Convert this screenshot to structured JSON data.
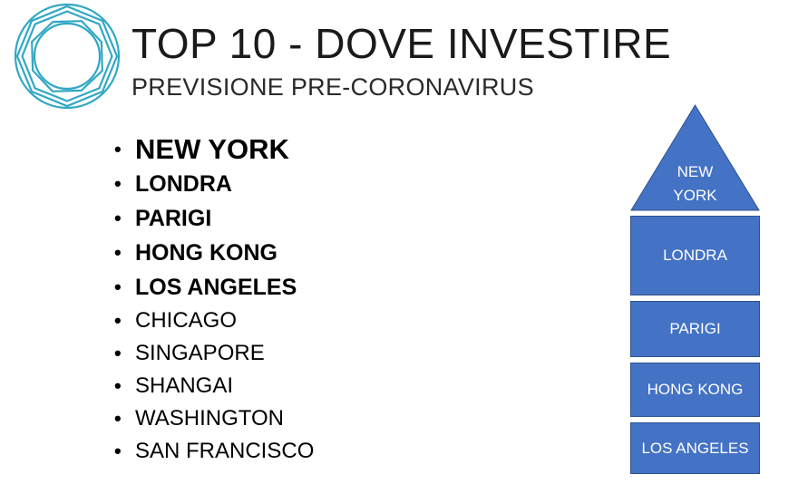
{
  "logo": {
    "icon": "geometric-circle-logo",
    "color": "#31a8c4"
  },
  "header": {
    "title": "TOP 10 - DOVE INVESTIRE",
    "subtitle": "PREVISIONE PRE-CORONAVIRUS"
  },
  "cities": [
    {
      "name": "NEW YORK",
      "style": "big"
    },
    {
      "name": "LONDRA",
      "style": "bold"
    },
    {
      "name": "PARIGI",
      "style": "bold"
    },
    {
      "name": "HONG KONG",
      "style": "bold"
    },
    {
      "name": "LOS ANGELES",
      "style": "bold"
    },
    {
      "name": "CHICAGO",
      "style": "normal"
    },
    {
      "name": "SINGAPORE",
      "style": "normal"
    },
    {
      "name": "SHANGAI",
      "style": "normal"
    },
    {
      "name": "WASHINGTON",
      "style": "normal"
    },
    {
      "name": "SAN FRANCISCO",
      "style": "normal"
    }
  ],
  "bullet": "•",
  "pyramid": {
    "fill": "#4472c4",
    "top": {
      "line1": "NEW",
      "line2": "YORK"
    },
    "levels": [
      "LONDRA",
      "PARIGI",
      "HONG KONG",
      "LOS ANGELES"
    ]
  }
}
